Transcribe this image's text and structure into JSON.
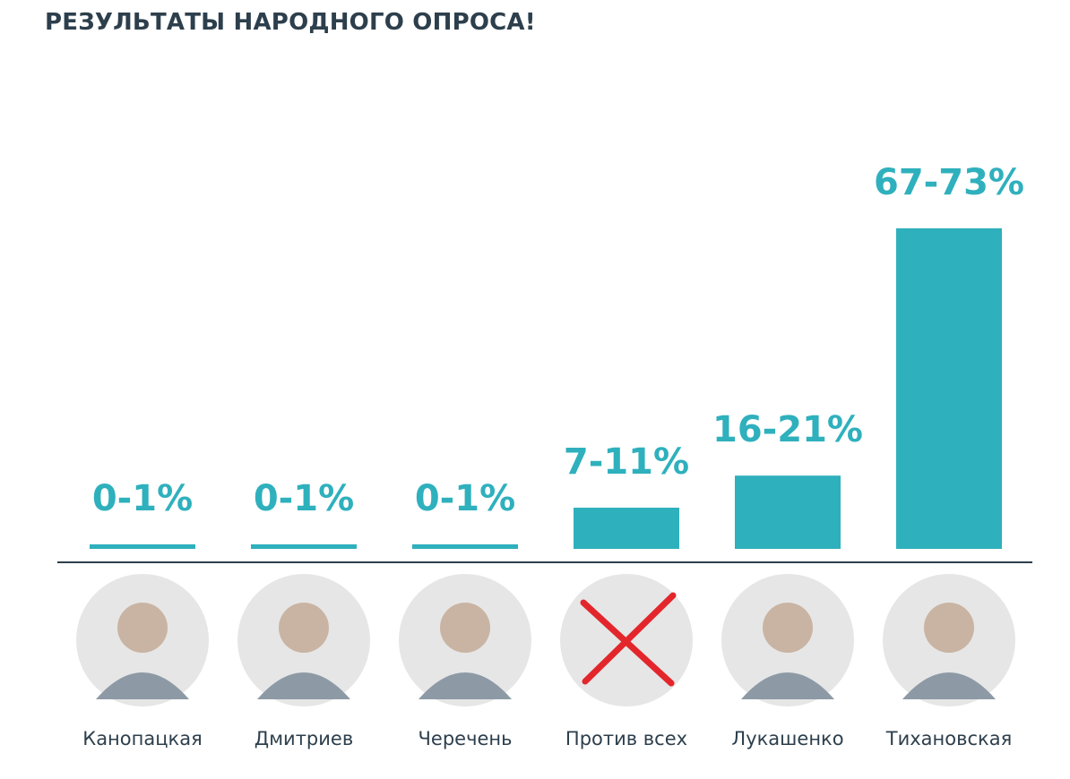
{
  "title": "РЕЗУЛЬТАТЫ НАРОДНОГО ОПРОСА!",
  "colors": {
    "bar": "#2fb0bd",
    "axis": "#2d3f4c",
    "text": "#2d3f4c",
    "avatar_bg": "#e6e6e6"
  },
  "chart_data": {
    "type": "bar",
    "categories": [
      "Канопацкая",
      "Дмитриев",
      "Черечень",
      "Против всех",
      "Лукашенко",
      "Тихановская"
    ],
    "value_labels": [
      "0-1%",
      "0-1%",
      "0-1%",
      "7-11%",
      "16-21%",
      "67-73%"
    ],
    "ranges": [
      [
        0,
        1
      ],
      [
        0,
        1
      ],
      [
        0,
        1
      ],
      [
        7,
        11
      ],
      [
        16,
        21
      ],
      [
        67,
        73
      ]
    ],
    "values": [
      1,
      1,
      1,
      9,
      16,
      70
    ],
    "ylim": [
      0,
      73
    ],
    "grid": false,
    "legend": "none",
    "icons": [
      "portrait-icon",
      "portrait-icon",
      "portrait-icon",
      "red-cross-icon",
      "portrait-icon",
      "portrait-icon"
    ]
  }
}
